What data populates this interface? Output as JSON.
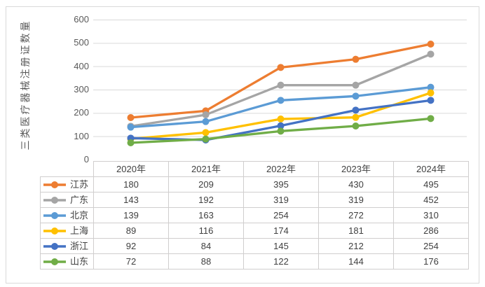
{
  "chart_data": {
    "type": "line",
    "title": "",
    "xlabel": "",
    "ylabel": "三类医疗器械注册证数量",
    "categories": [
      "2020年",
      "2021年",
      "2022年",
      "2023年",
      "2024年"
    ],
    "series": [
      {
        "name": "江苏",
        "color": "#ED7D31",
        "values": [
          180,
          209,
          395,
          430,
          495
        ]
      },
      {
        "name": "广东",
        "color": "#A5A5A5",
        "values": [
          143,
          192,
          319,
          319,
          452
        ]
      },
      {
        "name": "北京",
        "color": "#5B9BD5",
        "values": [
          139,
          163,
          254,
          272,
          310
        ]
      },
      {
        "name": "上海",
        "color": "#FFC000",
        "values": [
          89,
          116,
          174,
          181,
          286
        ]
      },
      {
        "name": "浙江",
        "color": "#4472C4",
        "values": [
          92,
          84,
          145,
          212,
          254
        ]
      },
      {
        "name": "山东",
        "color": "#70AD47",
        "values": [
          72,
          88,
          122,
          144,
          176
        ]
      }
    ],
    "ylim": [
      0,
      600
    ],
    "ytick_step": 100,
    "yticks": [
      0,
      100,
      200,
      300,
      400,
      500,
      600
    ],
    "grid": true,
    "marker": "circle",
    "legend_position": "data-table-left",
    "colors": {
      "grid": "#d9d9d9",
      "frame_border": "#d9d9d9",
      "table_border": "#d0cece",
      "axis_text": "#595959",
      "table_text": "#404040"
    }
  }
}
